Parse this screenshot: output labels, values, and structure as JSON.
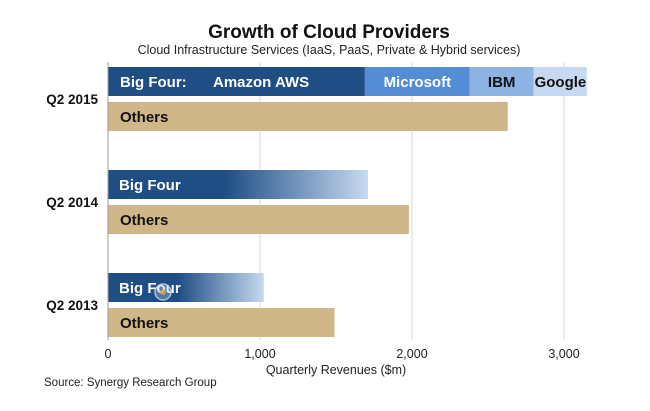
{
  "chart_data": {
    "type": "bar",
    "orientation": "horizontal",
    "title": "Growth of Cloud Providers",
    "subtitle": "Cloud Infrastructure Services (IaaS, PaaS, Private & Hybrid services)",
    "xlabel": "Quarterly Revenues ($m)",
    "ylabel": "",
    "xlim": [
      0,
      3300
    ],
    "xticks": [
      0,
      1000,
      2000,
      3000
    ],
    "xtick_labels": [
      "0",
      "1,000",
      "2,000",
      "3,000"
    ],
    "grid": true,
    "source": "Source: Synergy Research Group",
    "categories": [
      "Q2 2015",
      "Q2 2014",
      "Q2 2013"
    ],
    "big_four_prefix_label": "Big Four:",
    "big_four_label": "Big Four",
    "others_label": "Others",
    "q2_2015_big_four_breakdown": [
      {
        "name": "Amazon AWS",
        "value": 1690,
        "color": "#1f4e84",
        "text_color": "#ffffff"
      },
      {
        "name": "Microsoft",
        "value": 690,
        "color": "#548dd4",
        "text_color": "#ffffff"
      },
      {
        "name": "IBM",
        "value": 420,
        "color": "#8db3e2",
        "text_color": "#111111"
      },
      {
        "name": "Google",
        "value": 350,
        "color": "#c6d9f1",
        "text_color": "#111111"
      }
    ],
    "series": [
      {
        "name": "Big Four",
        "values": [
          3150,
          1710,
          1025
        ],
        "color_start": "#1f4e84",
        "color_end": "#c6d9f1"
      },
      {
        "name": "Others",
        "values": [
          2630,
          1980,
          1490
        ],
        "color": "#cfb78a"
      }
    ]
  }
}
